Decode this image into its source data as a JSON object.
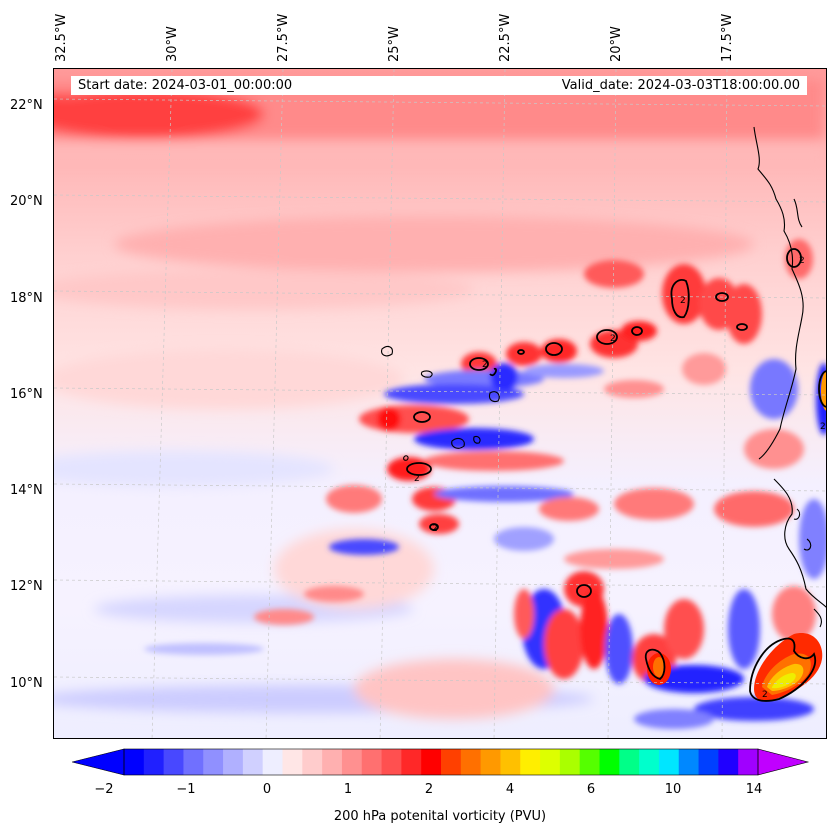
{
  "map": {
    "start_label": "Start date: 2024-03-01_00:00:00",
    "valid_label": "Valid_date: 2024-03-03T18:00:00.00",
    "variable": "200 hPa potenital vorticity (PVU)",
    "lon_labels": [
      "32.5°W",
      "30°W",
      "27.5°W",
      "25°W",
      "22.5°W",
      "20°W",
      "17.5°W"
    ],
    "lat_labels": [
      "22°N",
      "20°N",
      "18°N",
      "16°N",
      "14°N",
      "12°N",
      "10°N"
    ],
    "contour_label": "2",
    "gridlines": "dashed light gray",
    "colorbar_ticks": [
      "−2",
      "−1",
      "0",
      "1",
      "2",
      "4",
      "6",
      "10",
      "14"
    ],
    "colorbar_colors": [
      "#0000ff",
      "#2020ff",
      "#4848ff",
      "#7070ff",
      "#9090ff",
      "#b0b0ff",
      "#d0d0ff",
      "#eeeeff",
      "#ffe6e6",
      "#ffcccc",
      "#ffb0b0",
      "#ff9090",
      "#ff7070",
      "#ff5050",
      "#ff2828",
      "#ff0000",
      "#ff4000",
      "#ff7000",
      "#ff9900",
      "#ffc000",
      "#ffee00",
      "#ddff00",
      "#aaff00",
      "#55ff00",
      "#00ff00",
      "#00ff88",
      "#00ffcc",
      "#00e6ff",
      "#0088ff",
      "#0040ff",
      "#2000ff",
      "#a000ff"
    ],
    "colorbar_extend_low": "#0000ff",
    "colorbar_extend_high": "#c000ff"
  }
}
